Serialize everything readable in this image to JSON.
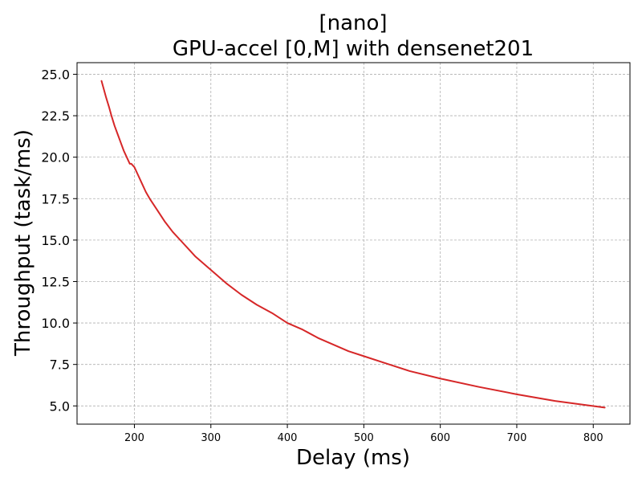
{
  "chart_data": {
    "type": "line",
    "title_lines": [
      "[nano]",
      "GPU-accel [0,M] with densenet201"
    ],
    "xlabel": "Delay (ms)",
    "ylabel": "Throughput (task/ms)",
    "xlim": [
      125,
      848
    ],
    "ylim": [
      3.9,
      25.7
    ],
    "xticks": [
      200,
      300,
      400,
      500,
      600,
      700,
      800
    ],
    "yticks": [
      5.0,
      7.5,
      10.0,
      12.5,
      15.0,
      17.5,
      20.0,
      22.5,
      25.0
    ],
    "xtick_labels": [
      "200",
      "300",
      "400",
      "500",
      "600",
      "700",
      "800"
    ],
    "ytick_labels": [
      "5.0",
      "7.5",
      "10.0",
      "12.5",
      "15.0",
      "17.5",
      "20.0",
      "22.5",
      "25.0"
    ],
    "grid": true,
    "series": [
      {
        "color": "#d62728",
        "points": [
          [
            157,
            24.6
          ],
          [
            160,
            24.1
          ],
          [
            163,
            23.6
          ],
          [
            167,
            23.0
          ],
          [
            170,
            22.5
          ],
          [
            174,
            21.9
          ],
          [
            178,
            21.4
          ],
          [
            182,
            20.9
          ],
          [
            186,
            20.4
          ],
          [
            190,
            20.0
          ],
          [
            194,
            19.6
          ],
          [
            196,
            19.6
          ],
          [
            200,
            19.4
          ],
          [
            205,
            18.9
          ],
          [
            210,
            18.4
          ],
          [
            215,
            17.9
          ],
          [
            220,
            17.5
          ],
          [
            230,
            16.8
          ],
          [
            240,
            16.1
          ],
          [
            250,
            15.5
          ],
          [
            260,
            15.0
          ],
          [
            270,
            14.5
          ],
          [
            280,
            14.0
          ],
          [
            290,
            13.6
          ],
          [
            300,
            13.2
          ],
          [
            320,
            12.4
          ],
          [
            340,
            11.7
          ],
          [
            360,
            11.1
          ],
          [
            380,
            10.6
          ],
          [
            400,
            10.0
          ],
          [
            420,
            9.6
          ],
          [
            440,
            9.1
          ],
          [
            460,
            8.7
          ],
          [
            480,
            8.3
          ],
          [
            500,
            8.0
          ],
          [
            530,
            7.55
          ],
          [
            560,
            7.1
          ],
          [
            600,
            6.65
          ],
          [
            650,
            6.15
          ],
          [
            700,
            5.7
          ],
          [
            750,
            5.3
          ],
          [
            815,
            4.9
          ]
        ]
      }
    ]
  }
}
